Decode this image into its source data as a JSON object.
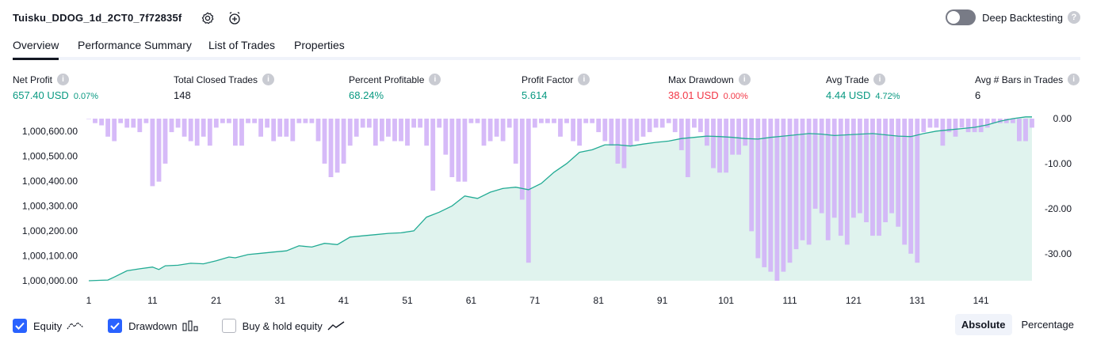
{
  "header": {
    "title": "Tuisku_DDOG_1d_2CT0_7f72835f",
    "settings_icon": "gear-icon",
    "alert_icon": "add-alert-icon",
    "deep_backtesting_label": "Deep Backtesting",
    "deep_backtesting_on": false
  },
  "tabs": [
    {
      "label": "Overview",
      "active": true
    },
    {
      "label": "Performance Summary",
      "active": false
    },
    {
      "label": "List of Trades",
      "active": false
    },
    {
      "label": "Properties",
      "active": false
    }
  ],
  "metrics": {
    "net_profit": {
      "label": "Net Profit",
      "value": "657.40 USD",
      "pct": "0.07%"
    },
    "total_closed_trades": {
      "label": "Total Closed Trades",
      "value": "148"
    },
    "percent_profitable": {
      "label": "Percent Profitable",
      "value": "68.24%"
    },
    "profit_factor": {
      "label": "Profit Factor",
      "value": "5.614"
    },
    "max_drawdown": {
      "label": "Max Drawdown",
      "value": "38.01 USD",
      "pct": "0.00%"
    },
    "avg_trade": {
      "label": "Avg Trade",
      "value": "4.44 USD",
      "pct": "4.72%"
    },
    "avg_bars": {
      "label": "Avg # Bars in Trades",
      "value": "6"
    }
  },
  "colors": {
    "equity_line": "#22ab94",
    "equity_fill": "#e0f3ee",
    "drawdown_bar": "#d1b3f7",
    "positive": "#089981",
    "negative": "#f23645",
    "accent": "#2962ff"
  },
  "chart_data": {
    "type": "area",
    "x_ticks": [
      "1",
      "11",
      "21",
      "31",
      "41",
      "51",
      "61",
      "71",
      "81",
      "91",
      "101",
      "111",
      "121",
      "131",
      "141"
    ],
    "left_ticks": [
      "1,000,600.00",
      "1,000,500.00",
      "1,000,400.00",
      "1,000,300.00",
      "1,000,200.00",
      "1,000,100.00",
      "1,000,000.00"
    ],
    "right_ticks": [
      "0.00",
      "-10.00",
      "-20.00",
      "-30.00"
    ],
    "left_ylim": [
      1000000,
      1000650
    ],
    "right_ylim": [
      -36,
      0
    ],
    "xlim": [
      1,
      149
    ],
    "series": [
      {
        "name": "Equity",
        "axis": "left",
        "x": [
          1,
          3,
          4,
          5,
          7,
          9,
          11,
          12,
          13,
          15,
          17,
          19,
          21,
          23,
          24,
          26,
          28,
          30,
          32,
          34,
          36,
          38,
          40,
          42,
          44,
          46,
          48,
          50,
          52,
          54,
          56,
          58,
          60,
          62,
          64,
          66,
          68,
          70,
          72,
          74,
          76,
          78,
          80,
          82,
          84,
          86,
          88,
          90,
          92,
          94,
          96,
          98,
          100,
          102,
          104,
          106,
          108,
          110,
          112,
          114,
          116,
          118,
          120,
          122,
          124,
          126,
          128,
          130,
          132,
          134,
          136,
          138,
          140,
          142,
          144,
          146,
          148,
          149
        ],
        "values": [
          0,
          2,
          3,
          15,
          40,
          48,
          55,
          45,
          60,
          62,
          70,
          68,
          80,
          95,
          92,
          105,
          110,
          115,
          120,
          140,
          135,
          150,
          145,
          175,
          180,
          185,
          190,
          192,
          200,
          255,
          275,
          300,
          340,
          330,
          355,
          370,
          375,
          365,
          390,
          435,
          470,
          515,
          525,
          545,
          545,
          540,
          548,
          555,
          560,
          570,
          575,
          580,
          578,
          575,
          570,
          568,
          575,
          580,
          585,
          590,
          588,
          582,
          585,
          588,
          590,
          585,
          580,
          578,
          590,
          600,
          605,
          610,
          615,
          625,
          640,
          650,
          657,
          657
        ]
      },
      {
        "name": "Drawdown",
        "axis": "right",
        "x": [
          1,
          2,
          3,
          4,
          5,
          6,
          7,
          8,
          9,
          10,
          11,
          12,
          13,
          14,
          15,
          16,
          17,
          18,
          19,
          20,
          21,
          22,
          23,
          24,
          25,
          26,
          27,
          28,
          29,
          30,
          31,
          32,
          33,
          34,
          35,
          36,
          37,
          38,
          39,
          40,
          41,
          42,
          43,
          44,
          45,
          46,
          47,
          48,
          49,
          50,
          51,
          52,
          53,
          54,
          55,
          56,
          57,
          58,
          59,
          60,
          61,
          62,
          63,
          64,
          65,
          66,
          67,
          68,
          69,
          70,
          71,
          72,
          73,
          74,
          75,
          76,
          77,
          78,
          79,
          80,
          81,
          82,
          83,
          84,
          85,
          86,
          87,
          88,
          89,
          90,
          91,
          92,
          93,
          94,
          95,
          96,
          97,
          98,
          99,
          100,
          101,
          102,
          103,
          104,
          105,
          106,
          107,
          108,
          109,
          110,
          111,
          112,
          113,
          114,
          115,
          116,
          117,
          118,
          119,
          120,
          121,
          122,
          123,
          124,
          125,
          126,
          127,
          128,
          129,
          130,
          131,
          132,
          133,
          134,
          135,
          136,
          137,
          138,
          139,
          140,
          141,
          142,
          143,
          144,
          145,
          146,
          147,
          148,
          149
        ],
        "values": [
          0,
          -1,
          -1.5,
          -4,
          -5,
          -1,
          -2,
          -2,
          -3,
          -1,
          -15,
          -14,
          -10,
          -3,
          -2,
          -4,
          -5,
          -6,
          -4,
          -6,
          -2,
          -1,
          -1,
          -6,
          -6,
          -1,
          -1,
          -4,
          -2,
          -5,
          -4,
          -4,
          -5,
          -1,
          -1,
          -1,
          -5,
          -10,
          -13,
          -12,
          -10,
          -6,
          -4,
          -2,
          -2,
          -6,
          -5,
          -4,
          -5,
          -5,
          -6,
          -2,
          -2,
          -6,
          -16,
          -2,
          -8,
          -13,
          -14,
          -14,
          -1,
          -1,
          -6,
          -5,
          -4,
          -5,
          -2,
          -10,
          -18,
          -32,
          -2,
          -1,
          -1,
          -1,
          -4,
          -1,
          -5,
          -6,
          -1,
          -1,
          -3,
          -5,
          -6,
          -10,
          -11,
          -6,
          -5,
          -4,
          -3,
          -2,
          -2,
          -1,
          -3,
          -7,
          -13,
          -2,
          -3,
          -6,
          -11,
          -12,
          -12,
          -8,
          -8,
          -6,
          -25,
          -31,
          -33,
          -34,
          -36,
          -34,
          -32,
          -29,
          -27,
          -28,
          -20,
          -21,
          -27,
          -22,
          -26,
          -28,
          -22,
          -21,
          -23,
          -26,
          -26,
          -23,
          -21,
          -24,
          -28,
          -30,
          -32,
          -3,
          -2,
          -2,
          -6,
          -3,
          -4,
          -2,
          -3,
          -3,
          -3,
          -2,
          -1,
          -1,
          -1,
          -1,
          -5,
          -5,
          -2
        ]
      }
    ],
    "legend": [
      "Equity",
      "Drawdown",
      "Buy & hold equity"
    ],
    "grid": false
  },
  "legend": {
    "equity": {
      "label": "Equity",
      "checked": true,
      "icon": "equity-line-icon"
    },
    "drawdown": {
      "label": "Drawdown",
      "checked": true,
      "icon": "drawdown-bars-icon"
    },
    "buy_hold": {
      "label": "Buy & hold equity",
      "checked": false,
      "icon": "buy-hold-line-icon"
    }
  },
  "mode": {
    "absolute": "Absolute",
    "percentage": "Percentage",
    "selected": "Absolute"
  }
}
